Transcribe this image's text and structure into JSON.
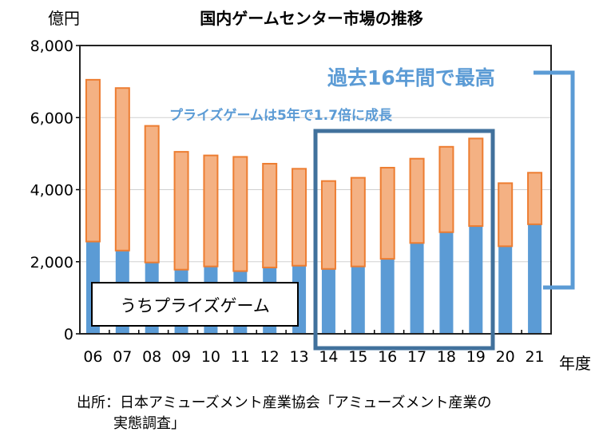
{
  "chart_data": {
    "type": "bar",
    "stacked": true,
    "title": "国内ゲームセンター市場の推移",
    "ylabel": "億円",
    "xlabel": "年度",
    "categories": [
      "06",
      "07",
      "08",
      "09",
      "10",
      "11",
      "12",
      "13",
      "14",
      "15",
      "16",
      "17",
      "18",
      "19",
      "20",
      "21"
    ],
    "series": [
      {
        "name": "うちプライズゲーム",
        "color": "#5b9bd5",
        "values": [
          2560,
          2310,
          1980,
          1780,
          1870,
          1740,
          1840,
          1890,
          1800,
          1870,
          2080,
          2520,
          2820,
          2990,
          2430,
          3040
        ]
      },
      {
        "color": "#f4b183",
        "edge": "#ed7d31",
        "values": [
          4490,
          4510,
          3790,
          3270,
          3080,
          3170,
          2880,
          2690,
          2440,
          2460,
          2530,
          2340,
          2370,
          2430,
          1750,
          1430
        ]
      }
    ],
    "totals": [
      7050,
      6820,
      5770,
      5050,
      4950,
      4910,
      4720,
      4580,
      4240,
      4330,
      4610,
      4860,
      5190,
      5420,
      4180,
      4470
    ],
    "ylim": [
      0,
      8000
    ],
    "yticks": [
      "0",
      "2,000",
      "4,000",
      "6,000",
      "8,000"
    ],
    "grid": true,
    "annotations": {
      "highest": "過去16年間で最高",
      "growth": "プライズゲームは5年で1.7倍に成長",
      "highlight_range": [
        "14",
        "19"
      ]
    },
    "accent_color": "#5b9bd5",
    "box_color": "#41719c"
  },
  "source": {
    "line1": "出所：日本アミューズメント産業協会「アミューズメント産業の",
    "line2": "実態調査」"
  }
}
